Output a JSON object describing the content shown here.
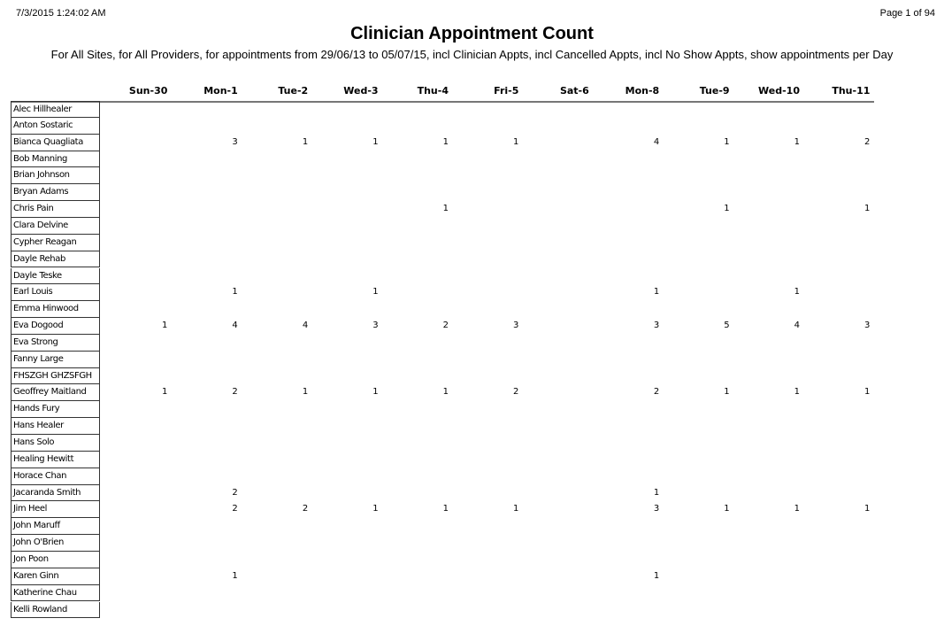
{
  "report": {
    "timestamp": "7/3/2015 1:24:02 AM",
    "page_label": "Page 1 of 94",
    "title": "Clinician Appointment Count",
    "subtitle": "For All Sites, for All Providers, for appointments from 29/06/13 to 05/07/15, incl Clinician Appts, incl Cancelled Appts, incl No Show Appts, show appointments per Day"
  },
  "table": {
    "columns": [
      "Sun-30",
      "Mon-1",
      "Tue-2",
      "Wed-3",
      "Thu-4",
      "Fri-5",
      "Sat-6",
      "Mon-8",
      "Tue-9",
      "Wed-10",
      "Thu-11"
    ],
    "rows": [
      {
        "name": "Alec Hillhealer",
        "values": [
          "",
          "",
          "",
          "",
          "",
          "",
          "",
          "",
          "",
          "",
          ""
        ]
      },
      {
        "name": "Anton Sostaric",
        "values": [
          "",
          "",
          "",
          "",
          "",
          "",
          "",
          "",
          "",
          "",
          ""
        ]
      },
      {
        "name": "Bianca  Quagliata",
        "values": [
          "",
          "3",
          "1",
          "1",
          "1",
          "1",
          "",
          "4",
          "1",
          "1",
          "2"
        ]
      },
      {
        "name": "Bob Manning",
        "values": [
          "",
          "",
          "",
          "",
          "",
          "",
          "",
          "",
          "",
          "",
          ""
        ]
      },
      {
        "name": "Brian Johnson",
        "values": [
          "",
          "",
          "",
          "",
          "",
          "",
          "",
          "",
          "",
          "",
          ""
        ]
      },
      {
        "name": "Bryan Adams",
        "values": [
          "",
          "",
          "",
          "",
          "",
          "",
          "",
          "",
          "",
          "",
          ""
        ]
      },
      {
        "name": "Chris Pain",
        "values": [
          "",
          "",
          "",
          "",
          "1",
          "",
          "",
          "",
          "1",
          "",
          "1"
        ]
      },
      {
        "name": "Clara Delvine",
        "values": [
          "",
          "",
          "",
          "",
          "",
          "",
          "",
          "",
          "",
          "",
          ""
        ]
      },
      {
        "name": "Cypher Reagan",
        "values": [
          "",
          "",
          "",
          "",
          "",
          "",
          "",
          "",
          "",
          "",
          ""
        ]
      },
      {
        "name": "Dayle Rehab",
        "values": [
          "",
          "",
          "",
          "",
          "",
          "",
          "",
          "",
          "",
          "",
          ""
        ]
      },
      {
        "name": "Dayle Teske",
        "values": [
          "",
          "",
          "",
          "",
          "",
          "",
          "",
          "",
          "",
          "",
          ""
        ]
      },
      {
        "name": "Earl Louis",
        "values": [
          "",
          "1",
          "",
          "1",
          "",
          "",
          "",
          "1",
          "",
          "1",
          ""
        ]
      },
      {
        "name": "Emma Hinwood",
        "values": [
          "",
          "",
          "",
          "",
          "",
          "",
          "",
          "",
          "",
          "",
          ""
        ]
      },
      {
        "name": "Eva Dogood",
        "values": [
          "1",
          "4",
          "4",
          "3",
          "2",
          "3",
          "",
          "3",
          "5",
          "4",
          "3"
        ]
      },
      {
        "name": "Eva Strong",
        "values": [
          "",
          "",
          "",
          "",
          "",
          "",
          "",
          "",
          "",
          "",
          ""
        ]
      },
      {
        "name": "Fanny Large",
        "values": [
          "",
          "",
          "",
          "",
          "",
          "",
          "",
          "",
          "",
          "",
          ""
        ]
      },
      {
        "name": "FHSZGH GHZSFGH",
        "values": [
          "",
          "",
          "",
          "",
          "",
          "",
          "",
          "",
          "",
          "",
          ""
        ]
      },
      {
        "name": "Geoffrey Maitland",
        "values": [
          "1",
          "2",
          "1",
          "1",
          "1",
          "2",
          "",
          "2",
          "1",
          "1",
          "1"
        ]
      },
      {
        "name": "Hands Fury",
        "values": [
          "",
          "",
          "",
          "",
          "",
          "",
          "",
          "",
          "",
          "",
          ""
        ]
      },
      {
        "name": "Hans Healer",
        "values": [
          "",
          "",
          "",
          "",
          "",
          "",
          "",
          "",
          "",
          "",
          ""
        ]
      },
      {
        "name": "Hans Solo",
        "values": [
          "",
          "",
          "",
          "",
          "",
          "",
          "",
          "",
          "",
          "",
          ""
        ]
      },
      {
        "name": "Healing Hewitt",
        "values": [
          "",
          "",
          "",
          "",
          "",
          "",
          "",
          "",
          "",
          "",
          ""
        ]
      },
      {
        "name": "Horace Chan",
        "values": [
          "",
          "",
          "",
          "",
          "",
          "",
          "",
          "",
          "",
          "",
          ""
        ]
      },
      {
        "name": "Jacaranda Smith",
        "values": [
          "",
          "2",
          "",
          "",
          "",
          "",
          "",
          "1",
          "",
          "",
          ""
        ]
      },
      {
        "name": "Jim Heel",
        "values": [
          "",
          "2",
          "2",
          "1",
          "1",
          "1",
          "",
          "3",
          "1",
          "1",
          "1"
        ]
      },
      {
        "name": "John Maruff",
        "values": [
          "",
          "",
          "",
          "",
          "",
          "",
          "",
          "",
          "",
          "",
          ""
        ]
      },
      {
        "name": "John O'Brien",
        "values": [
          "",
          "",
          "",
          "",
          "",
          "",
          "",
          "",
          "",
          "",
          ""
        ]
      },
      {
        "name": "Jon Poon",
        "values": [
          "",
          "",
          "",
          "",
          "",
          "",
          "",
          "",
          "",
          "",
          ""
        ]
      },
      {
        "name": "Karen Ginn",
        "values": [
          "",
          "1",
          "",
          "",
          "",
          "",
          "",
          "1",
          "",
          "",
          ""
        ]
      },
      {
        "name": "Katherine Chau",
        "values": [
          "",
          "",
          "",
          "",
          "",
          "",
          "",
          "",
          "",
          "",
          ""
        ]
      },
      {
        "name": "Kelli Rowland",
        "values": [
          "",
          "",
          "",
          "",
          "",
          "",
          "",
          "",
          "",
          "",
          ""
        ]
      }
    ]
  }
}
